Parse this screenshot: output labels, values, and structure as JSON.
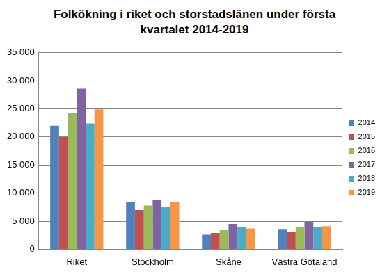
{
  "chart_data": {
    "type": "bar",
    "title": "Folkökning i riket och storstadslänen under första kvartalet 2014-2019",
    "categories": [
      "Riket",
      "Stockholm",
      "Skåne",
      "Västra Götaland"
    ],
    "series": [
      {
        "name": "2014",
        "color": "#4f81bd",
        "values": [
          22000,
          8400,
          2600,
          3500
        ]
      },
      {
        "name": "2015",
        "color": "#c0504d",
        "values": [
          20000,
          7000,
          2900,
          3100
        ]
      },
      {
        "name": "2016",
        "color": "#9bbb59",
        "values": [
          24300,
          7800,
          3400,
          3900
        ]
      },
      {
        "name": "2017",
        "color": "#8064a2",
        "values": [
          28600,
          8800,
          4500,
          4900
        ]
      },
      {
        "name": "2018",
        "color": "#4bacc6",
        "values": [
          22400,
          7500,
          3900,
          3900
        ]
      },
      {
        "name": "2019",
        "color": "#f79646",
        "values": [
          24900,
          8400,
          3700,
          4100
        ]
      }
    ],
    "ylim": [
      0,
      35000
    ],
    "yticks": [
      0,
      {
        "value": 5000,
        "label": "5 000"
      },
      {
        "value": 10000,
        "label": "10 000"
      },
      {
        "value": 15000,
        "label": "15 000"
      },
      {
        "value": 20000,
        "label": "20 000"
      },
      {
        "value": 25000,
        "label": "25 000"
      },
      {
        "value": 30000,
        "label": "30 000"
      },
      {
        "value": 35000,
        "label": "35 000"
      }
    ],
    "grid": true,
    "legend": "right"
  }
}
